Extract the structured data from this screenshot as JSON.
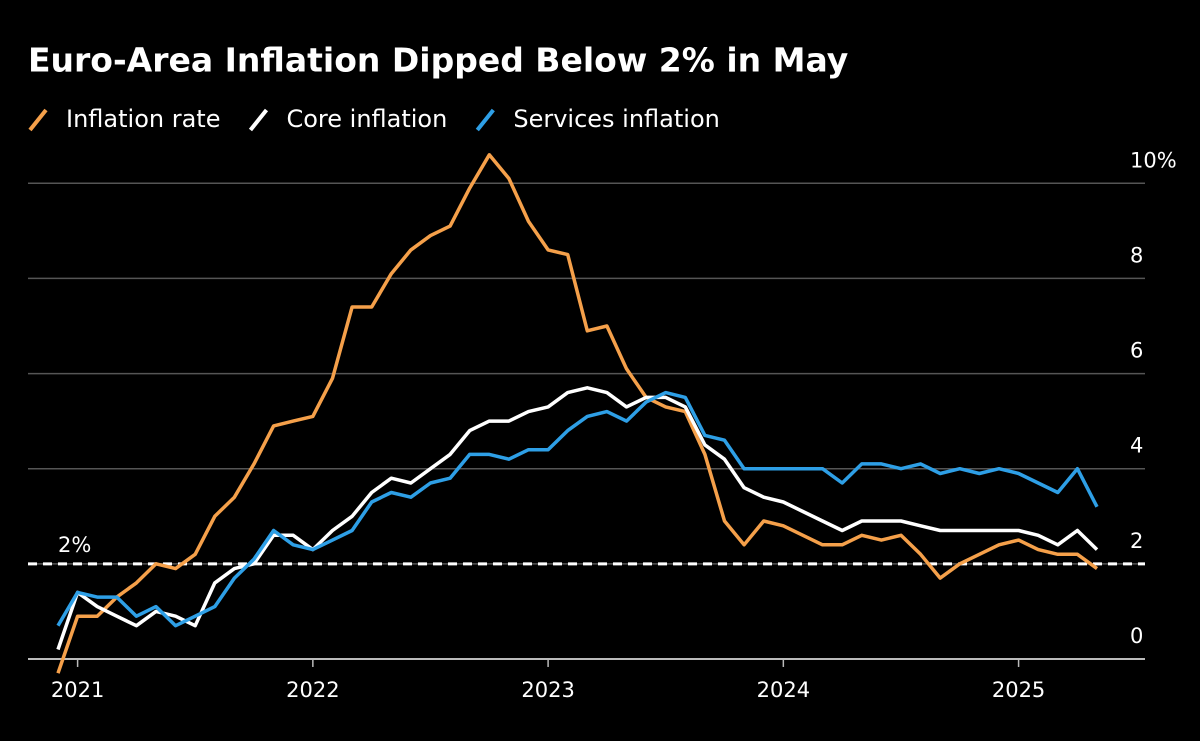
{
  "chart_data": {
    "type": "line",
    "title": "Euro-Area Inflation Dipped Below 2% in May",
    "categories": [
      null,
      "2021",
      null,
      null,
      null,
      null,
      null,
      null,
      null,
      null,
      null,
      null,
      null,
      "2022",
      null,
      null,
      null,
      null,
      null,
      null,
      null,
      null,
      null,
      null,
      null,
      "2023",
      null,
      null,
      null,
      null,
      null,
      null,
      null,
      null,
      null,
      null,
      null,
      "2024",
      null,
      null,
      null,
      null,
      null,
      null,
      null,
      null,
      null,
      null,
      null,
      "2025",
      null,
      null,
      null,
      null
    ],
    "series": [
      {
        "name": "Inflation rate",
        "color": "#f5a04a",
        "values": [
          -0.3,
          0.9,
          0.9,
          1.3,
          1.6,
          2.0,
          1.9,
          2.2,
          3.0,
          3.4,
          4.1,
          4.9,
          5.0,
          5.1,
          5.9,
          7.4,
          7.4,
          8.1,
          8.6,
          8.9,
          9.1,
          9.9,
          10.6,
          10.1,
          9.2,
          8.6,
          8.5,
          6.9,
          7.0,
          6.1,
          5.5,
          5.3,
          5.2,
          4.3,
          2.9,
          2.4,
          2.9,
          2.8,
          2.6,
          2.4,
          2.4,
          2.6,
          2.5,
          2.6,
          2.2,
          1.7,
          2.0,
          2.2,
          2.4,
          2.5,
          2.3,
          2.2,
          2.2,
          1.9
        ]
      },
      {
        "name": "Core inflation",
        "color": "#ffffff",
        "values": [
          0.2,
          1.4,
          1.1,
          0.9,
          0.7,
          1.0,
          0.9,
          0.7,
          1.6,
          1.9,
          2.0,
          2.6,
          2.6,
          2.3,
          2.7,
          3.0,
          3.5,
          3.8,
          3.7,
          4.0,
          4.3,
          4.8,
          5.0,
          5.0,
          5.2,
          5.3,
          5.6,
          5.7,
          5.6,
          5.3,
          5.5,
          5.5,
          5.3,
          4.5,
          4.2,
          3.6,
          3.4,
          3.3,
          3.1,
          2.9,
          2.7,
          2.9,
          2.9,
          2.9,
          2.8,
          2.7,
          2.7,
          2.7,
          2.7,
          2.7,
          2.6,
          2.4,
          2.7,
          2.3
        ]
      },
      {
        "name": "Services inflation",
        "color": "#2e9fe6",
        "values": [
          0.7,
          1.4,
          1.3,
          1.3,
          0.9,
          1.1,
          0.7,
          0.9,
          1.1,
          1.7,
          2.1,
          2.7,
          2.4,
          2.3,
          2.5,
          2.7,
          3.3,
          3.5,
          3.4,
          3.7,
          3.8,
          4.3,
          4.3,
          4.2,
          4.4,
          4.4,
          4.8,
          5.1,
          5.2,
          5.0,
          5.4,
          5.6,
          5.5,
          4.7,
          4.6,
          4.0,
          4.0,
          4.0,
          4.0,
          4.0,
          3.7,
          4.1,
          4.1,
          4.0,
          4.1,
          3.9,
          4.0,
          3.9,
          4.0,
          3.9,
          3.7,
          3.5,
          4.0,
          3.2
        ]
      }
    ],
    "ylim": [
      -0.4,
      10.7
    ],
    "yticks": [
      0,
      2,
      4,
      6,
      8,
      {
        "value": 10,
        "label": "10%"
      }
    ],
    "grid": true,
    "legend": "top-left",
    "annotations": [
      {
        "text": "2%",
        "value": 2
      }
    ]
  }
}
